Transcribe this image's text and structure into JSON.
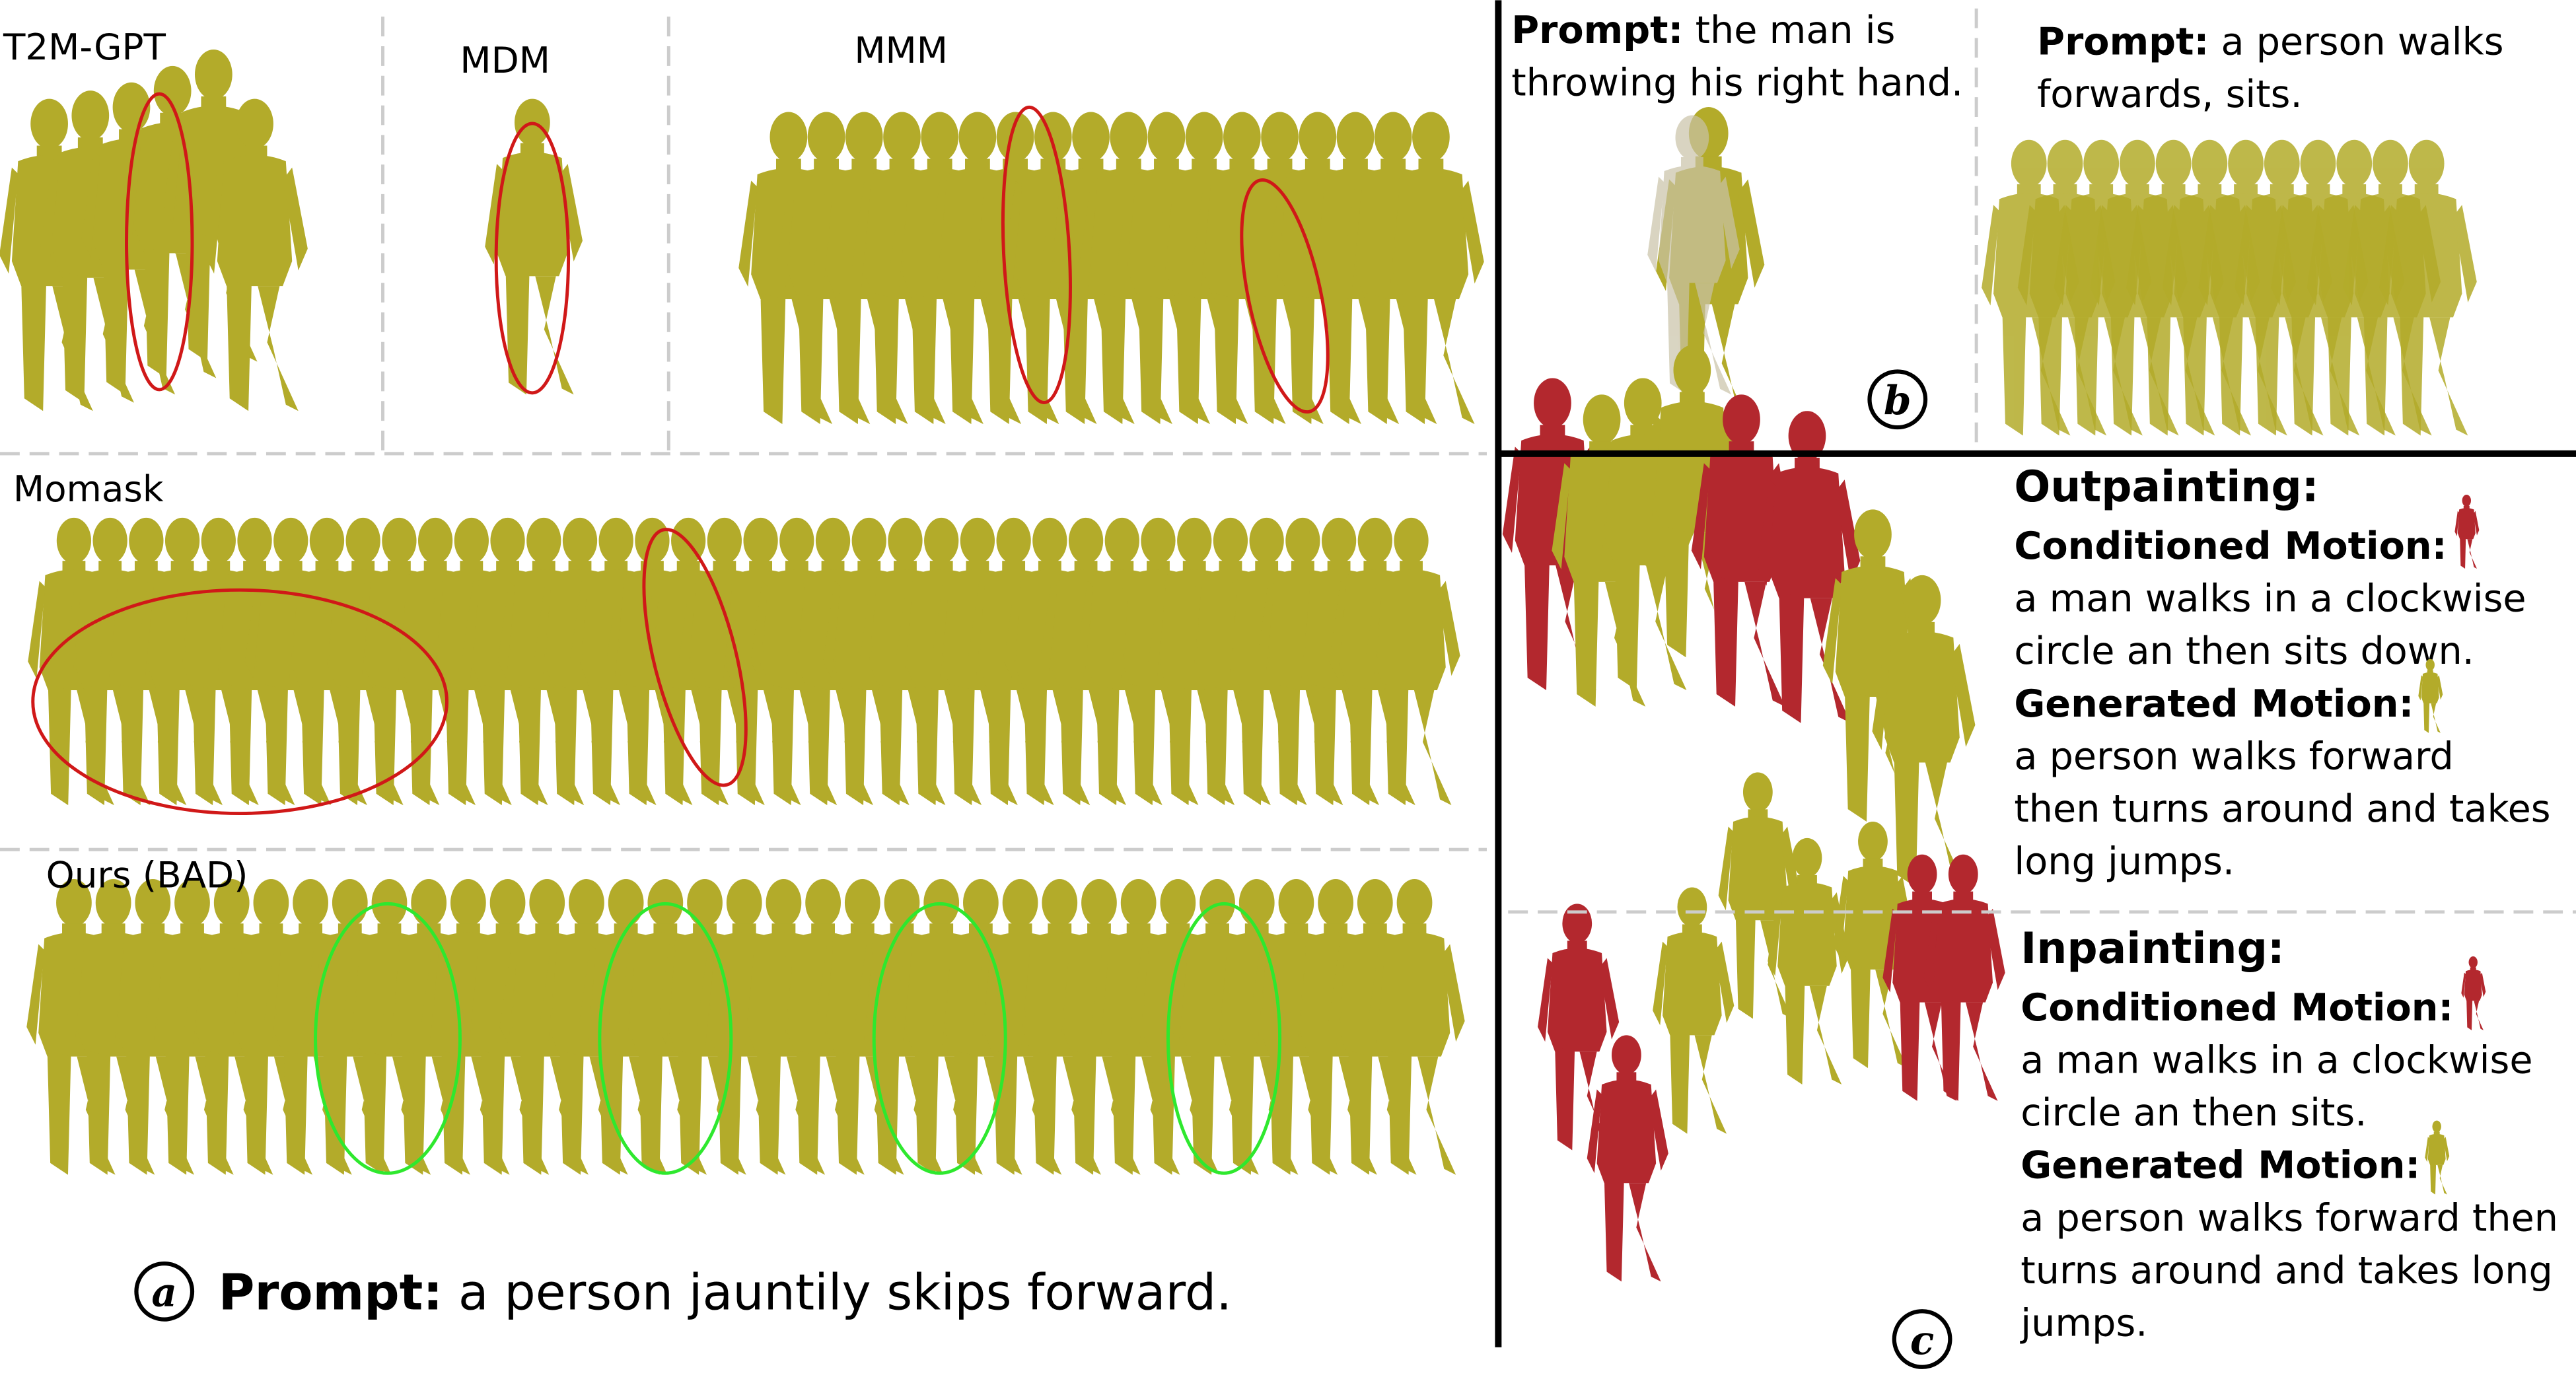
{
  "panel_a": {
    "labels": [
      "T2M-GPT",
      "MDM",
      "MMM",
      "Momask",
      "Ours (BAD)"
    ],
    "marker": "a",
    "prompt_label": "Prompt:",
    "prompt": "a person jauntily skips forward."
  },
  "panel_b": {
    "marker": "b",
    "prompts": [
      {
        "label": "Prompt:",
        "lines": [
          "the man is",
          "throwing his right hand."
        ]
      },
      {
        "label": "Prompt:",
        "lines": [
          "a person walks",
          "forwards, sits."
        ]
      }
    ]
  },
  "panel_c": {
    "marker": "c",
    "sections": [
      {
        "title": "Outpainting:",
        "conditioned_label": "Conditioned Motion:",
        "conditioned_text": [
          "a man walks in a clockwise",
          "circle an then sits down."
        ],
        "generated_label": "Generated Motion:",
        "generated_text": [
          "a person walks forward",
          "then turns around and takes",
          "long jumps."
        ]
      },
      {
        "title": "Inpainting:",
        "conditioned_label": "Conditioned Motion:",
        "conditioned_text": [
          "a man walks in a clockwise",
          "circle an then sits."
        ],
        "generated_label": "Generated Motion:",
        "generated_text": [
          "a person walks forward then",
          "turns around and takes long",
          "jumps."
        ]
      }
    ]
  }
}
